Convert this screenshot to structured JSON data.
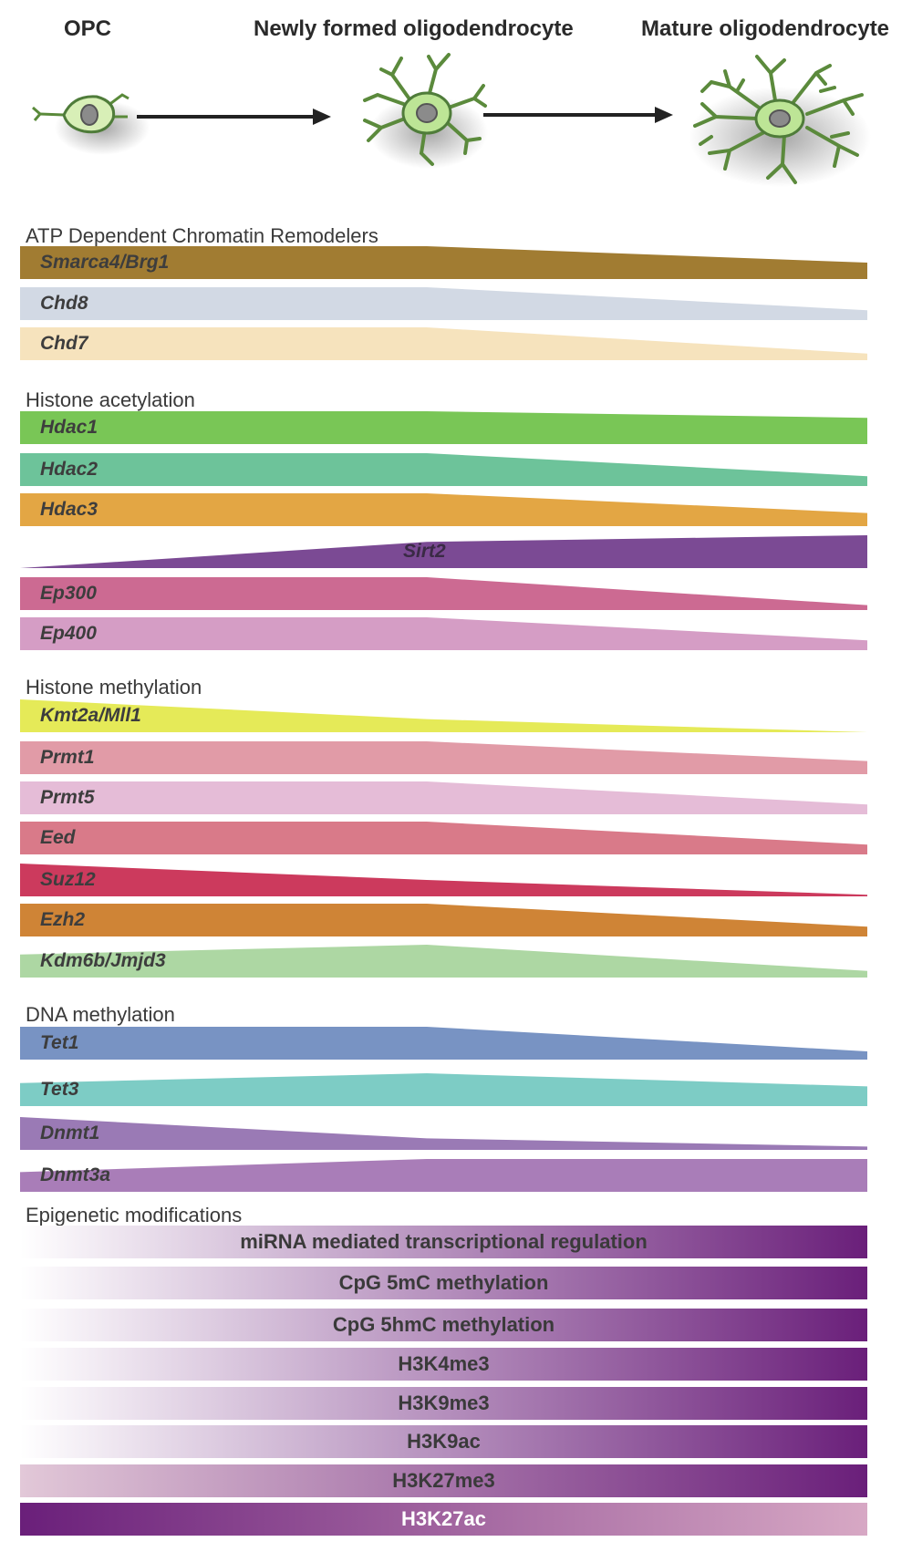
{
  "stages": [
    {
      "label": "OPC"
    },
    {
      "label": "Newly formed oligodendrocyte"
    },
    {
      "label": "Mature oligodendrocyte"
    }
  ],
  "sections": [
    {
      "title": "ATP Dependent Chromatin Remodelers",
      "items": [
        {
          "label": "Smarca4/Brg1",
          "color": "#a17c32",
          "profile": [
            1.0,
            1.0,
            0.5
          ]
        },
        {
          "label": "Chd8",
          "color": "#d2d9e4",
          "profile": [
            1.0,
            1.0,
            0.3
          ]
        },
        {
          "label": "Chd7",
          "color": "#f6e3bd",
          "profile": [
            1.0,
            1.0,
            0.2
          ]
        }
      ]
    },
    {
      "title": "Histone acetylation",
      "items": [
        {
          "label": "Hdac1",
          "color": "#79c656",
          "profile": [
            1.0,
            1.0,
            0.8
          ]
        },
        {
          "label": "Hdac2",
          "color": "#6dc39a",
          "profile": [
            1.0,
            1.0,
            0.3
          ]
        },
        {
          "label": "Hdac3",
          "color": "#e3a644",
          "profile": [
            1.0,
            1.0,
            0.4
          ]
        },
        {
          "label": "Sirt2",
          "color": "#7b4a94",
          "profile": [
            0.0,
            0.8,
            1.0
          ]
        },
        {
          "label": "Ep300",
          "color": "#cc6a92",
          "profile": [
            1.0,
            1.0,
            0.15
          ]
        },
        {
          "label": "Ep400",
          "color": "#d59dc5",
          "profile": [
            1.0,
            1.0,
            0.3
          ]
        }
      ]
    },
    {
      "title": "Histone methylation",
      "items": [
        {
          "label": "Kmt2a/Mll1",
          "color": "#e5ea58",
          "profile": [
            1.0,
            0.4,
            0.0
          ]
        },
        {
          "label": "Prmt1",
          "color": "#e19ba7",
          "profile": [
            1.0,
            1.0,
            0.4
          ]
        },
        {
          "label": "Prmt5",
          "color": "#e5bcd7",
          "profile": [
            1.0,
            1.0,
            0.3
          ]
        },
        {
          "label": "Eed",
          "color": "#d97a89",
          "profile": [
            1.0,
            1.0,
            0.3
          ]
        },
        {
          "label": "Suz12",
          "color": "#cc3a5d",
          "profile": [
            1.0,
            0.5,
            0.05
          ]
        },
        {
          "label": "Ezh2",
          "color": "#cf8436",
          "profile": [
            1.0,
            1.0,
            0.3
          ]
        },
        {
          "label": "Kdm6b/Jmjd3",
          "color": "#add7a3",
          "profile": [
            0.7,
            1.0,
            0.2
          ]
        }
      ]
    },
    {
      "title": "DNA methylation",
      "items": [
        {
          "label": "Tet1",
          "color": "#7893c3",
          "profile": [
            1.0,
            1.0,
            0.25
          ]
        },
        {
          "label": "Tet3",
          "color": "#7dccc5",
          "profile": [
            0.7,
            1.0,
            0.6
          ]
        },
        {
          "label": "Dnmt1",
          "color": "#9a7ab5",
          "profile": [
            1.0,
            0.35,
            0.1
          ]
        },
        {
          "label": "Dnmt3a",
          "color": "#a97db8",
          "profile": [
            0.6,
            1.0,
            1.0
          ]
        }
      ]
    }
  ],
  "epigenetic": {
    "title": "Epigenetic modifications",
    "bars": [
      {
        "label": "miRNA mediated transcriptional regulation",
        "start_color": "#ffffff",
        "end_color": "#6a1f7a"
      },
      {
        "label": "CpG 5mC methylation",
        "start_color": "#ffffff",
        "end_color": "#6a1f7a"
      },
      {
        "label": "CpG 5hmC methylation",
        "start_color": "#ffffff",
        "end_color": "#6a1f7a"
      },
      {
        "label": "H3K4me3",
        "start_color": "#ffffff",
        "end_color": "#6a1f7a"
      },
      {
        "label": "H3K9me3",
        "start_color": "#ffffff",
        "end_color": "#6a1f7a"
      },
      {
        "label": "H3K9ac",
        "start_color": "#ffffff",
        "end_color": "#6a1f7a"
      },
      {
        "label": "H3K27me3",
        "start_color": "#e2c8d8",
        "end_color": "#6a1f7a"
      },
      {
        "label": "H3K27ac",
        "start_color": "#6a1f7a",
        "end_color": "#d7a8c4"
      }
    ]
  }
}
